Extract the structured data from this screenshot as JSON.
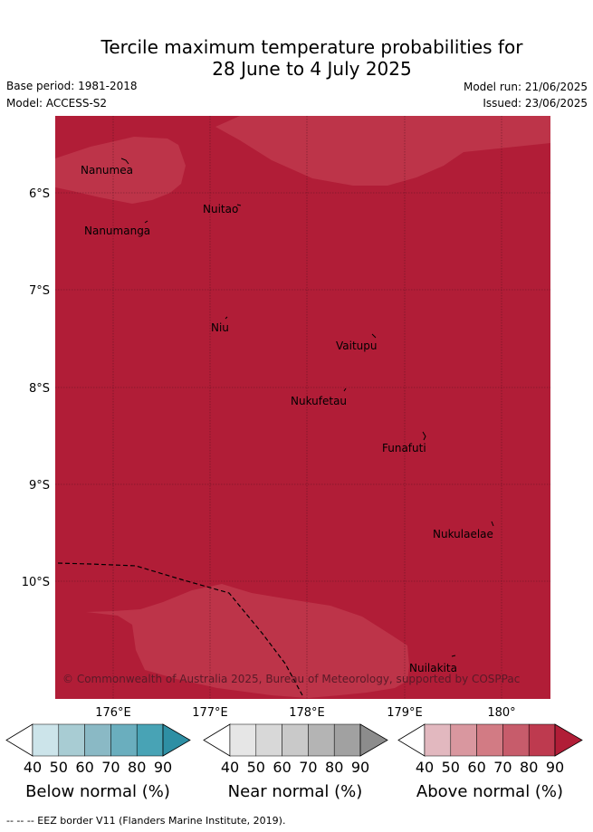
{
  "header": {
    "title_line1": "Tercile maximum temperature probabilities for",
    "title_line2": "28 June to 4 July 2025",
    "base_period": "Base period: 1981-2018",
    "model": "Model: ACCESS-S2",
    "model_run": "Model run: 21/06/2025",
    "issued": "Issued: 23/06/2025"
  },
  "map": {
    "latitude_labels": [
      "6°S",
      "7°S",
      "8°S",
      "9°S",
      "10°S"
    ],
    "longitude_labels": [
      "176°E",
      "177°E",
      "178°E",
      "179°E",
      "180°"
    ],
    "places": [
      "Nanumea",
      "Nuitao",
      "Nanumanga",
      "Niu",
      "Vaitupu",
      "Nukufetau",
      "Funafuti",
      "Nukulaelae",
      "Nuilakita"
    ],
    "credit": "© Commonwealth of Australia 2025, Bureau of Meteorology, supported by COSPPac",
    "background_color": "#b11d37",
    "lighter_zone_color": "#bd3449"
  },
  "colorbars": [
    {
      "title": "Below normal (%)",
      "ticks": [
        "40",
        "50",
        "60",
        "70",
        "80",
        "90"
      ],
      "colors": [
        "#cce4ea",
        "#a8ccd3",
        "#8ab9c5",
        "#6aaebe",
        "#48a3b5",
        "#2e8fa4"
      ]
    },
    {
      "title": "Near normal (%)",
      "ticks": [
        "40",
        "50",
        "60",
        "70",
        "80",
        "90"
      ],
      "colors": [
        "#e6e6e6",
        "#d8d8d8",
        "#c9c9c9",
        "#b4b4b4",
        "#a1a1a1",
        "#8c8c8c"
      ]
    },
    {
      "title": "Above normal (%)",
      "ticks": [
        "40",
        "50",
        "60",
        "70",
        "80",
        "90"
      ],
      "colors": [
        "#e2b8bf",
        "#d9979f",
        "#d27b84",
        "#c75c6b",
        "#be3a4f",
        "#b11d37"
      ]
    }
  ],
  "footer": {
    "eez_note": "--  --  -- EEZ border V11 (Flanders Marine Institute, 2019)."
  }
}
